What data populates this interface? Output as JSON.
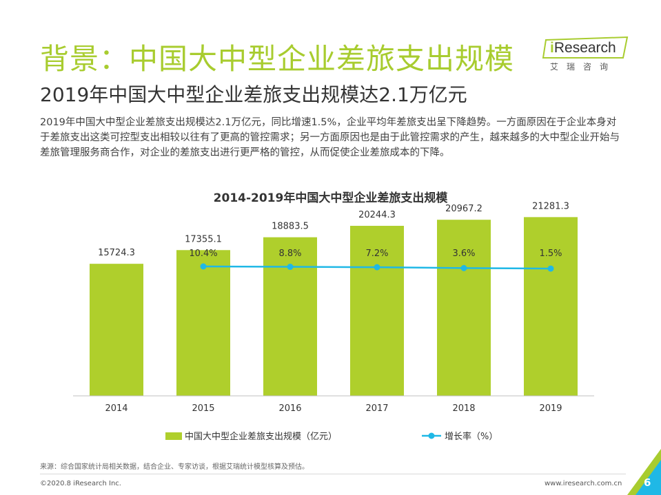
{
  "header": {
    "title": "背景：中国大中型企业差旅支出规模",
    "subtitle": "2019年中国大中型企业差旅支出规模达2.1万亿元",
    "description": "2019年中国大中型企业差旅支出规模达2.1万亿元，同比增速1.5%，企业平均年差旅支出呈下降趋势。一方面原因在于企业本身对于差旅支出这类可控型支出相较以往有了更高的管控需求；另一方面原因也是由于此管控需求的产生，越来越多的大中型企业开始与差旅管理服务商合作，对企业的差旅支出进行更严格的管控，从而促使企业差旅成本的下降。"
  },
  "logo": {
    "prefix": "i",
    "name": "Research",
    "cn": "艾瑞咨询"
  },
  "chart_data": {
    "type": "bar",
    "title": "2014-2019年中国大中型企业差旅支出规模",
    "categories": [
      "2014",
      "2015",
      "2016",
      "2017",
      "2018",
      "2019"
    ],
    "series": [
      {
        "name": "中国大中型企业差旅支出规模（亿元）",
        "type": "bar",
        "values": [
          15724.3,
          17355.1,
          18883.5,
          20244.3,
          20967.2,
          21281.3
        ],
        "labels": [
          "15724.3",
          "17355.1",
          "18883.5",
          "20244.3",
          "20967.2",
          "21281.3"
        ],
        "color": "#afcf2c"
      },
      {
        "name": "增长率（%）",
        "type": "line",
        "x": [
          "2015",
          "2016",
          "2017",
          "2018",
          "2019"
        ],
        "values": [
          10.4,
          8.8,
          7.2,
          3.6,
          1.5
        ],
        "labels": [
          "10.4%",
          "8.8%",
          "7.2%",
          "3.6%",
          "1.5%"
        ],
        "color": "#1fb8e6"
      }
    ],
    "ylim": [
      0,
      25000
    ],
    "grid": false,
    "legend": "bottom"
  },
  "footer": {
    "source": "来源：综合国家统计局相关数据，结合企业、专家访谈，根据艾瑞统计模型核算及预估。",
    "copyright": "©2020.8 iResearch Inc.",
    "url": "www.iresearch.com.cn",
    "page": "6"
  },
  "colors": {
    "accent": "#a8cc2f",
    "bar": "#afcf2c",
    "line": "#1fb8e6"
  }
}
